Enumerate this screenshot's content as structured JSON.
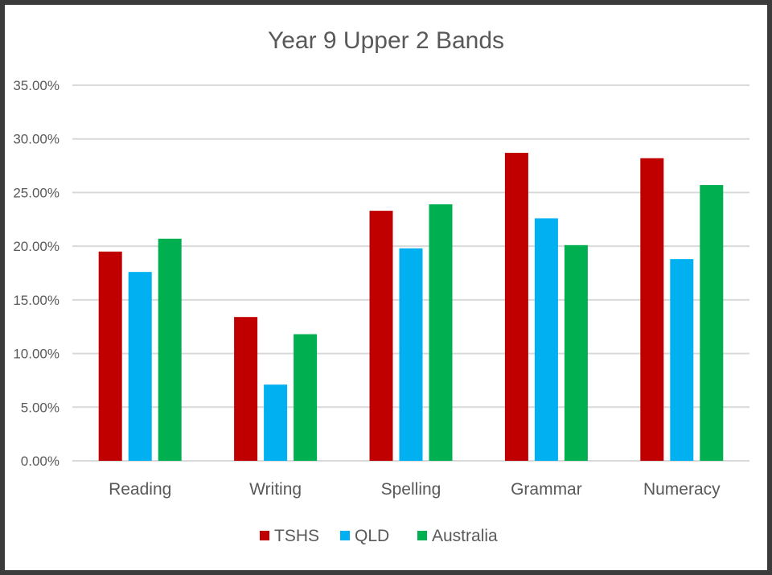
{
  "chart_data": {
    "type": "bar",
    "title": "Year 9 Upper 2 Bands",
    "xlabel": "",
    "ylabel": "",
    "categories": [
      "Reading",
      "Writing",
      "Spelling",
      "Grammar",
      "Numeracy"
    ],
    "series": [
      {
        "name": "TSHS",
        "color": "#c00000",
        "values": [
          19.5,
          13.4,
          23.3,
          28.7,
          28.2
        ]
      },
      {
        "name": "QLD",
        "color": "#00b0f0",
        "values": [
          17.6,
          7.1,
          19.8,
          22.6,
          18.8
        ]
      },
      {
        "name": "Australia",
        "color": "#00b050",
        "values": [
          20.7,
          11.8,
          23.9,
          20.1,
          25.7
        ]
      }
    ],
    "ylim": [
      0,
      35
    ],
    "yticks": [
      "0.00%",
      "5.00%",
      "10.00%",
      "15.00%",
      "20.00%",
      "25.00%",
      "30.00%",
      "35.00%"
    ],
    "grid": true,
    "legend_position": "bottom"
  }
}
